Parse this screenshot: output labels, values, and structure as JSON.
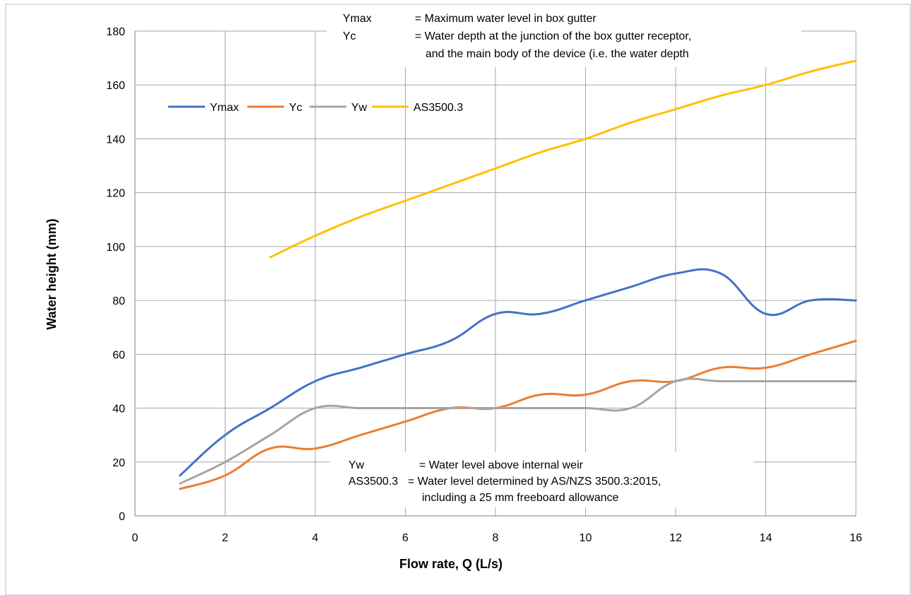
{
  "chart_data": {
    "type": "line",
    "xlabel": "Flow rate, Q (L/s)",
    "ylabel": "Water height (mm)",
    "xlim": [
      0,
      16
    ],
    "ylim": [
      0,
      180
    ],
    "x_ticks": [
      "0",
      "2",
      "4",
      "6",
      "8",
      "10",
      "12",
      "14",
      "16"
    ],
    "y_ticks": [
      "0",
      "20",
      "40",
      "60",
      "80",
      "100",
      "120",
      "140",
      "160",
      "180"
    ],
    "grid": true,
    "legend_position": "upper-left",
    "series": [
      {
        "name": "Ymax",
        "color": "#4472c4",
        "x": [
          1,
          2,
          3,
          4,
          5,
          6,
          7,
          8,
          9,
          10,
          11,
          12,
          13,
          14,
          15,
          16
        ],
        "y": [
          15,
          30,
          40,
          50,
          55,
          60,
          65,
          75,
          75,
          80,
          85,
          90,
          90,
          75,
          80,
          80
        ]
      },
      {
        "name": "Yc",
        "color": "#ed7d31",
        "x": [
          1,
          2,
          3,
          4,
          5,
          6,
          7,
          8,
          9,
          10,
          11,
          12,
          13,
          14,
          15,
          16
        ],
        "y": [
          10,
          15,
          25,
          25,
          30,
          35,
          40,
          40,
          45,
          45,
          50,
          50,
          55,
          55,
          60,
          65
        ]
      },
      {
        "name": "Yw",
        "color": "#a5a5a5",
        "x": [
          1,
          2,
          3,
          4,
          5,
          6,
          7,
          8,
          9,
          10,
          11,
          12,
          13,
          14,
          15,
          16
        ],
        "y": [
          12,
          20,
          30,
          40,
          40,
          40,
          40,
          40,
          40,
          40,
          40,
          50,
          50,
          50,
          50,
          50
        ]
      },
      {
        "name": "AS3500.3",
        "color": "#ffc000",
        "x": [
          3,
          4,
          5,
          6,
          7,
          8,
          9,
          10,
          11,
          12,
          13,
          14,
          15,
          16
        ],
        "y": [
          96,
          104,
          111,
          117,
          123,
          129,
          135,
          140,
          146,
          151,
          156,
          160,
          165,
          169
        ]
      }
    ],
    "annotations": {
      "top": [
        {
          "term": "Ymax",
          "definition": "= Maximum water level in box gutter"
        },
        {
          "term": "Yc",
          "definition": "= Water depth at the junction of the box gutter receptor,"
        },
        {
          "term": "",
          "definition": "and the main body of the device (i.e. the water depth"
        }
      ],
      "bottom": [
        {
          "term": "Yw",
          "definition": "= Water level above internal weir"
        },
        {
          "term": "AS3500.3",
          "definition": "= Water level determined by AS/NZS 3500.3:2015,"
        },
        {
          "term": "",
          "definition": "including a 25 mm freeboard allowance"
        }
      ]
    }
  }
}
